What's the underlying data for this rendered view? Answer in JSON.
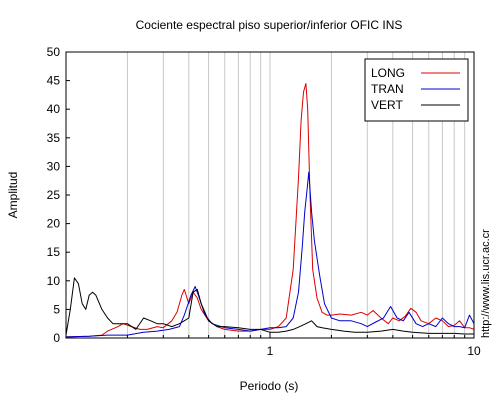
{
  "chart_data": {
    "type": "line",
    "title": "Cociente espectral piso superior/inferior  OFIC INS",
    "xlabel": "Periodo (s)",
    "ylabel": "Amplitud",
    "xscale": "log",
    "xlim": [
      0.1,
      10
    ],
    "ylim": [
      0,
      50
    ],
    "xtick_labels": [
      {
        "value": 1,
        "label": "1"
      },
      {
        "value": 10,
        "label": "10"
      }
    ],
    "ytick_labels": [
      {
        "value": 0,
        "label": "0"
      },
      {
        "value": 5,
        "label": "5"
      },
      {
        "value": 10,
        "label": "10"
      },
      {
        "value": 15,
        "label": "15"
      },
      {
        "value": 20,
        "label": "20"
      },
      {
        "value": 25,
        "label": "25"
      },
      {
        "value": 30,
        "label": "30"
      },
      {
        "value": 35,
        "label": "35"
      },
      {
        "value": 40,
        "label": "40"
      },
      {
        "value": 45,
        "label": "45"
      },
      {
        "value": 50,
        "label": "50"
      }
    ],
    "grid": "vertical lines at log decade subdivisions",
    "legend_placement": "top-right",
    "annotation": "http://www.lis.ucr.ac.cr",
    "series": [
      {
        "name": "LONG",
        "color": "#dd0000",
        "points": [
          [
            0.1,
            0.2
          ],
          [
            0.13,
            0.3
          ],
          [
            0.15,
            0.5
          ],
          [
            0.16,
            1.2
          ],
          [
            0.18,
            2.0
          ],
          [
            0.19,
            2.5
          ],
          [
            0.21,
            2.0
          ],
          [
            0.23,
            1.5
          ],
          [
            0.25,
            1.5
          ],
          [
            0.28,
            2.0
          ],
          [
            0.3,
            1.8
          ],
          [
            0.33,
            3.0
          ],
          [
            0.35,
            4.5
          ],
          [
            0.37,
            7.5
          ],
          [
            0.38,
            8.5
          ],
          [
            0.4,
            6.0
          ],
          [
            0.42,
            8.0
          ],
          [
            0.44,
            7.0
          ],
          [
            0.46,
            5.0
          ],
          [
            0.5,
            3.0
          ],
          [
            0.55,
            2.0
          ],
          [
            0.6,
            1.5
          ],
          [
            0.7,
            1.2
          ],
          [
            0.8,
            1.2
          ],
          [
            0.9,
            1.5
          ],
          [
            1.0,
            1.5
          ],
          [
            1.1,
            2.0
          ],
          [
            1.2,
            3.5
          ],
          [
            1.3,
            12.0
          ],
          [
            1.38,
            28.0
          ],
          [
            1.42,
            38.0
          ],
          [
            1.46,
            43.0
          ],
          [
            1.5,
            44.5
          ],
          [
            1.53,
            40.0
          ],
          [
            1.57,
            25.0
          ],
          [
            1.62,
            12.0
          ],
          [
            1.7,
            7.0
          ],
          [
            1.8,
            4.5
          ],
          [
            1.9,
            4.0
          ],
          [
            2.0,
            4.0
          ],
          [
            2.2,
            4.2
          ],
          [
            2.5,
            4.0
          ],
          [
            2.8,
            4.5
          ],
          [
            3.0,
            4.0
          ],
          [
            3.2,
            4.8
          ],
          [
            3.5,
            3.5
          ],
          [
            3.8,
            2.5
          ],
          [
            4.0,
            3.5
          ],
          [
            4.3,
            3.0
          ],
          [
            4.6,
            3.8
          ],
          [
            4.9,
            5.2
          ],
          [
            5.2,
            4.5
          ],
          [
            5.5,
            3.0
          ],
          [
            6.0,
            2.5
          ],
          [
            6.5,
            3.5
          ],
          [
            7.0,
            3.0
          ],
          [
            7.5,
            2.0
          ],
          [
            8.0,
            2.2
          ],
          [
            8.5,
            3.0
          ],
          [
            9.0,
            1.8
          ],
          [
            9.5,
            1.8
          ],
          [
            10.0,
            1.5
          ]
        ]
      },
      {
        "name": "TRAN",
        "color": "#0000cc",
        "points": [
          [
            0.1,
            0.2
          ],
          [
            0.13,
            0.3
          ],
          [
            0.16,
            0.5
          ],
          [
            0.2,
            0.5
          ],
          [
            0.24,
            1.0
          ],
          [
            0.28,
            1.2
          ],
          [
            0.32,
            1.5
          ],
          [
            0.36,
            2.0
          ],
          [
            0.38,
            4.0
          ],
          [
            0.41,
            7.5
          ],
          [
            0.43,
            9.0
          ],
          [
            0.45,
            7.0
          ],
          [
            0.48,
            4.0
          ],
          [
            0.52,
            2.5
          ],
          [
            0.6,
            1.8
          ],
          [
            0.7,
            1.5
          ],
          [
            0.8,
            1.2
          ],
          [
            0.9,
            1.5
          ],
          [
            1.0,
            1.8
          ],
          [
            1.1,
            1.8
          ],
          [
            1.2,
            2.0
          ],
          [
            1.3,
            3.5
          ],
          [
            1.38,
            8.0
          ],
          [
            1.44,
            16.0
          ],
          [
            1.48,
            22.0
          ],
          [
            1.52,
            26.0
          ],
          [
            1.55,
            29.0
          ],
          [
            1.6,
            22.0
          ],
          [
            1.65,
            17.0
          ],
          [
            1.75,
            11.0
          ],
          [
            1.85,
            6.0
          ],
          [
            2.0,
            3.5
          ],
          [
            2.2,
            3.0
          ],
          [
            2.5,
            3.0
          ],
          [
            2.8,
            2.5
          ],
          [
            3.0,
            2.0
          ],
          [
            3.3,
            2.8
          ],
          [
            3.6,
            3.5
          ],
          [
            3.9,
            5.5
          ],
          [
            4.2,
            3.5
          ],
          [
            4.5,
            3.0
          ],
          [
            4.8,
            4.5
          ],
          [
            5.2,
            2.5
          ],
          [
            5.6,
            2.0
          ],
          [
            6.0,
            2.5
          ],
          [
            6.5,
            2.0
          ],
          [
            7.0,
            3.5
          ],
          [
            7.5,
            2.5
          ],
          [
            8.0,
            2.0
          ],
          [
            8.5,
            2.0
          ],
          [
            9.0,
            1.8
          ],
          [
            9.5,
            4.0
          ],
          [
            10.0,
            2.5
          ]
        ]
      },
      {
        "name": "VERT",
        "color": "#000000",
        "points": [
          [
            0.1,
            0.5
          ],
          [
            0.105,
            5.0
          ],
          [
            0.11,
            10.5
          ],
          [
            0.115,
            9.5
          ],
          [
            0.12,
            6.0
          ],
          [
            0.125,
            5.0
          ],
          [
            0.13,
            7.5
          ],
          [
            0.135,
            8.0
          ],
          [
            0.14,
            7.5
          ],
          [
            0.15,
            5.0
          ],
          [
            0.16,
            3.5
          ],
          [
            0.17,
            2.5
          ],
          [
            0.18,
            2.5
          ],
          [
            0.2,
            2.5
          ],
          [
            0.22,
            1.5
          ],
          [
            0.24,
            3.5
          ],
          [
            0.26,
            3.0
          ],
          [
            0.28,
            2.5
          ],
          [
            0.3,
            2.5
          ],
          [
            0.33,
            2.0
          ],
          [
            0.36,
            2.5
          ],
          [
            0.38,
            3.0
          ],
          [
            0.4,
            3.5
          ],
          [
            0.42,
            8.0
          ],
          [
            0.44,
            8.5
          ],
          [
            0.46,
            6.0
          ],
          [
            0.5,
            3.0
          ],
          [
            0.55,
            2.0
          ],
          [
            0.6,
            2.0
          ],
          [
            0.7,
            1.8
          ],
          [
            0.8,
            1.5
          ],
          [
            0.9,
            1.5
          ],
          [
            1.0,
            1.0
          ],
          [
            1.1,
            1.0
          ],
          [
            1.2,
            1.2
          ],
          [
            1.3,
            1.5
          ],
          [
            1.4,
            2.0
          ],
          [
            1.5,
            2.5
          ],
          [
            1.6,
            3.0
          ],
          [
            1.7,
            2.0
          ],
          [
            1.8,
            1.8
          ],
          [
            2.0,
            1.5
          ],
          [
            2.3,
            1.2
          ],
          [
            2.6,
            1.0
          ],
          [
            3.0,
            1.0
          ],
          [
            3.5,
            1.2
          ],
          [
            4.0,
            1.5
          ],
          [
            4.5,
            1.2
          ],
          [
            5.0,
            1.0
          ],
          [
            6.0,
            0.8
          ],
          [
            7.0,
            0.8
          ],
          [
            8.0,
            0.8
          ],
          [
            9.0,
            0.7
          ],
          [
            10.0,
            0.7
          ]
        ]
      }
    ]
  }
}
